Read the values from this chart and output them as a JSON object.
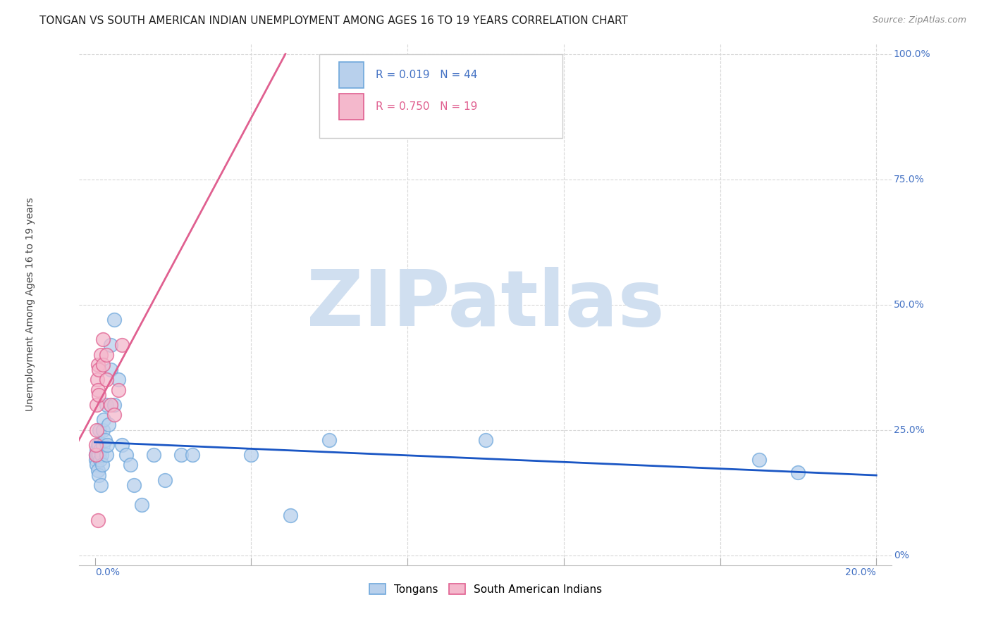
{
  "title": "TONGAN VS SOUTH AMERICAN INDIAN UNEMPLOYMENT AMONG AGES 16 TO 19 YEARS CORRELATION CHART",
  "source": "Source: ZipAtlas.com",
  "ylabel": "Unemployment Among Ages 16 to 19 years",
  "legend_1_r": "0.019",
  "legend_1_n": "44",
  "legend_2_r": "0.750",
  "legend_2_n": "19",
  "blue_fill": "#b8d0ec",
  "blue_edge": "#6fa8dc",
  "pink_fill": "#f4b8cc",
  "pink_edge": "#e06090",
  "trendline_blue": "#1a56c4",
  "trendline_pink": "#e06090",
  "watermark": "ZIPatlas",
  "watermark_color": "#d0dff0",
  "background_color": "#ffffff",
  "grid_color": "#d8d8d8",
  "axis_color": "#4472c4",
  "title_color": "#222222",
  "source_color": "#888888",
  "tongans_x": [
    0.0002,
    0.0003,
    0.0004,
    0.0005,
    0.0006,
    0.0007,
    0.0008,
    0.0009,
    0.001,
    0.001,
    0.0012,
    0.0013,
    0.0014,
    0.0015,
    0.0016,
    0.0018,
    0.002,
    0.002,
    0.0022,
    0.0025,
    0.003,
    0.003,
    0.0032,
    0.0035,
    0.004,
    0.004,
    0.005,
    0.005,
    0.006,
    0.007,
    0.008,
    0.009,
    0.01,
    0.012,
    0.015,
    0.018,
    0.022,
    0.025,
    0.04,
    0.05,
    0.06,
    0.1,
    0.17,
    0.18
  ],
  "tongans_y": [
    0.2,
    0.19,
    0.21,
    0.18,
    0.2,
    0.17,
    0.22,
    0.16,
    0.2,
    0.22,
    0.25,
    0.19,
    0.21,
    0.14,
    0.2,
    0.18,
    0.25,
    0.22,
    0.27,
    0.23,
    0.3,
    0.2,
    0.22,
    0.26,
    0.42,
    0.37,
    0.47,
    0.3,
    0.35,
    0.22,
    0.2,
    0.18,
    0.14,
    0.1,
    0.2,
    0.15,
    0.2,
    0.2,
    0.2,
    0.08,
    0.23,
    0.23,
    0.19,
    0.165
  ],
  "sai_x": [
    0.0002,
    0.0003,
    0.0004,
    0.0005,
    0.0006,
    0.0007,
    0.0008,
    0.001,
    0.001,
    0.0015,
    0.002,
    0.002,
    0.003,
    0.003,
    0.004,
    0.005,
    0.006,
    0.007,
    0.0008
  ],
  "sai_y": [
    0.2,
    0.22,
    0.25,
    0.3,
    0.35,
    0.33,
    0.38,
    0.32,
    0.37,
    0.4,
    0.38,
    0.43,
    0.35,
    0.4,
    0.3,
    0.28,
    0.33,
    0.42,
    0.07
  ],
  "xlim": [
    0.0,
    0.2
  ],
  "ylim": [
    0.0,
    1.0
  ],
  "xpad": 0.004,
  "ypad": 0.02
}
